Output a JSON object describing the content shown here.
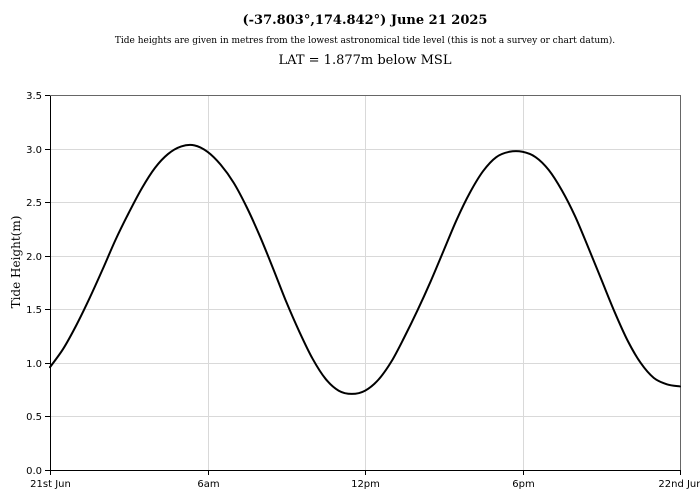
{
  "chart_data": {
    "type": "line",
    "title": "(-37.803°,174.842°) June 21 2025",
    "subtitle": "Tide heights are given in metres from the lowest astronomical tide level (this is not a survey or chart datum).",
    "lat_note": "LAT = 1.877m below MSL",
    "xlabel": "",
    "ylabel": "Tide Height(m)",
    "xlim": [
      0,
      24
    ],
    "ylim": [
      0,
      3.5
    ],
    "grid": true,
    "x_ticks": [
      {
        "value": 0,
        "label": "21st Jun"
      },
      {
        "value": 6,
        "label": "6am"
      },
      {
        "value": 12,
        "label": "12pm"
      },
      {
        "value": 18,
        "label": "6pm"
      },
      {
        "value": 24,
        "label": "22nd Jun"
      }
    ],
    "y_ticks": [
      {
        "value": 0.0,
        "label": "0.0"
      },
      {
        "value": 0.5,
        "label": "0.5"
      },
      {
        "value": 1.0,
        "label": "1.0"
      },
      {
        "value": 1.5,
        "label": "1.5"
      },
      {
        "value": 2.0,
        "label": "2.0"
      },
      {
        "value": 2.5,
        "label": "2.5"
      },
      {
        "value": 3.0,
        "label": "3.0"
      },
      {
        "value": 3.5,
        "label": "3.5"
      }
    ],
    "series": [
      {
        "color": "#000000",
        "x": [
          0,
          0.5,
          1,
          1.5,
          2,
          2.5,
          3,
          3.5,
          4,
          4.5,
          5,
          5.5,
          6,
          6.5,
          7,
          7.5,
          8,
          8.5,
          9,
          9.5,
          10,
          10.5,
          11,
          11.5,
          12,
          12.5,
          13,
          13.5,
          14,
          14.5,
          15,
          15.5,
          16,
          16.5,
          17,
          17.5,
          18,
          18.5,
          19,
          19.5,
          20,
          20.5,
          21,
          21.5,
          22,
          22.5,
          23,
          23.5,
          24
        ],
        "values": [
          0.96,
          1.13,
          1.35,
          1.6,
          1.87,
          2.15,
          2.4,
          2.63,
          2.82,
          2.95,
          3.02,
          3.03,
          2.97,
          2.85,
          2.68,
          2.45,
          2.18,
          1.88,
          1.57,
          1.29,
          1.04,
          0.85,
          0.74,
          0.71,
          0.74,
          0.84,
          1.01,
          1.24,
          1.49,
          1.76,
          2.05,
          2.34,
          2.59,
          2.79,
          2.92,
          2.97,
          2.97,
          2.92,
          2.8,
          2.61,
          2.37,
          2.08,
          1.78,
          1.48,
          1.21,
          1.0,
          0.86,
          0.8,
          0.78
        ]
      }
    ]
  }
}
